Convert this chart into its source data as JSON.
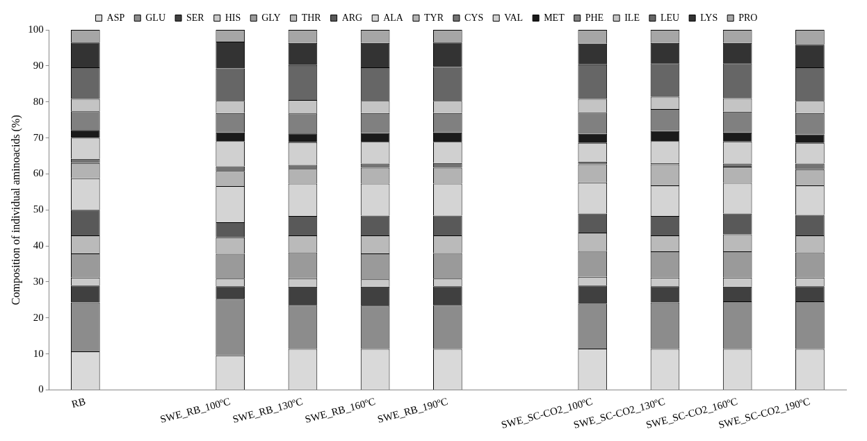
{
  "chart_data": {
    "type": "bar",
    "stacked": true,
    "ylabel": "Composition of individual aminoacids (%)",
    "categories": [
      "RB",
      null,
      "SWE_RB_100ºC",
      "SWE_RB_130ºC",
      "SWE_RB_160ºC",
      "SWE_RB_190ºC",
      null,
      "SWE_SC-CO2_100ºC",
      "SWE_SC-CO2_130ºC",
      "SWE_SC-CO2_160ºC",
      "SWE_SC-CO2_190ºC"
    ],
    "ylim": [
      0,
      100
    ],
    "yticks": [
      0,
      10,
      20,
      30,
      40,
      50,
      60,
      70,
      80,
      90,
      100
    ],
    "grid": false,
    "legend": "top",
    "series": [
      {
        "name": "ASP",
        "color": "#d9d9d9",
        "values": [
          10.7,
          null,
          9.6,
          11.4,
          11.4,
          11.4,
          null,
          11.5,
          11.4,
          11.4,
          11.4
        ]
      },
      {
        "name": "GLU",
        "color": "#8c8c8c",
        "values": [
          13.6,
          null,
          15.7,
          12.2,
          12.0,
          12.2,
          null,
          12.4,
          12.9,
          13.2,
          13.2
        ]
      },
      {
        "name": "SER",
        "color": "#404040",
        "values": [
          4.7,
          null,
          3.5,
          5.1,
          5.3,
          5.2,
          null,
          5.1,
          4.5,
          4.1,
          4.2
        ]
      },
      {
        "name": "HIS",
        "color": "#c9c9c9",
        "values": [
          2.2,
          null,
          2.1,
          2.3,
          2.0,
          2.1,
          null,
          2.4,
          2.4,
          2.5,
          2.4
        ]
      },
      {
        "name": "GLY",
        "color": "#9a9a9a",
        "values": [
          6.7,
          null,
          6.9,
          7.2,
          7.2,
          7.1,
          null,
          7.2,
          7.3,
          7.3,
          7.0
        ]
      },
      {
        "name": "THR",
        "color": "#bababa",
        "values": [
          5.0,
          null,
          4.6,
          4.7,
          5.0,
          4.9,
          null,
          5.1,
          4.4,
          4.7,
          4.7
        ]
      },
      {
        "name": "ARG",
        "color": "#595959",
        "values": [
          7.1,
          null,
          4.2,
          5.4,
          5.5,
          5.5,
          null,
          5.3,
          5.4,
          5.8,
          5.7
        ]
      },
      {
        "name": "ALA",
        "color": "#d4d4d4",
        "values": [
          8.8,
          null,
          10.0,
          9.0,
          8.9,
          8.9,
          null,
          8.6,
          8.5,
          8.5,
          8.2
        ]
      },
      {
        "name": "TYR",
        "color": "#b3b3b3",
        "values": [
          4.2,
          null,
          4.2,
          4.1,
          4.4,
          4.4,
          null,
          5.1,
          5.9,
          4.5,
          4.5
        ]
      },
      {
        "name": "CYS",
        "color": "#737373",
        "values": [
          1.2,
          null,
          1.3,
          1.1,
          1.2,
          1.3,
          null,
          0.7,
          0.3,
          0.9,
          1.6
        ]
      },
      {
        "name": "VAL",
        "color": "#d0d0d0",
        "values": [
          5.8,
          null,
          7.0,
          6.3,
          6.0,
          5.9,
          null,
          5.2,
          6.1,
          6.1,
          5.7
        ]
      },
      {
        "name": "MET",
        "color": "#1a1a1a",
        "values": [
          2.2,
          null,
          2.4,
          2.4,
          2.4,
          2.6,
          null,
          2.5,
          2.8,
          2.5,
          2.4
        ]
      },
      {
        "name": "PHE",
        "color": "#808080",
        "values": [
          5.2,
          null,
          5.4,
          5.6,
          5.6,
          5.4,
          null,
          5.9,
          6.1,
          5.8,
          5.9
        ]
      },
      {
        "name": "ILE",
        "color": "#c4c4c4",
        "values": [
          3.4,
          null,
          3.4,
          3.7,
          3.4,
          3.4,
          null,
          3.8,
          3.4,
          3.7,
          3.4
        ]
      },
      {
        "name": "LEU",
        "color": "#666666",
        "values": [
          8.8,
          null,
          9.0,
          9.7,
          9.3,
          9.4,
          null,
          9.6,
          9.3,
          9.7,
          9.3
        ]
      },
      {
        "name": "LYS",
        "color": "#333333",
        "values": [
          6.9,
          null,
          7.4,
          6.2,
          6.8,
          6.8,
          null,
          5.8,
          5.7,
          5.7,
          6.3
        ]
      },
      {
        "name": "PRO",
        "color": "#a6a6a6",
        "values": [
          3.5,
          null,
          3.3,
          3.6,
          3.6,
          3.5,
          null,
          3.8,
          3.6,
          3.6,
          4.1
        ]
      }
    ]
  }
}
